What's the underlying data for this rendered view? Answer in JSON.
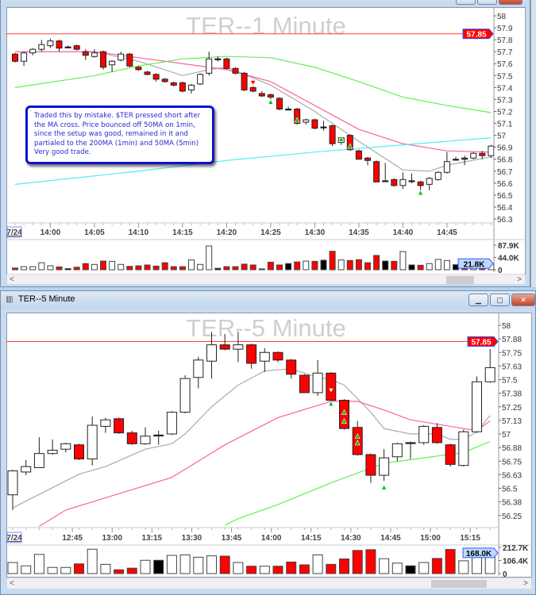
{
  "colors": {
    "up": "#ffffff",
    "down": "#ff0000",
    "doji": "#000000",
    "ref_line": "#ff4040",
    "ma_gray": "#aaaaaa",
    "ma_pink": "#ff5fa8",
    "ma_green": "#66ee55",
    "ma_cyan": "#55eeee",
    "tag_red": "#ff0000",
    "tag_border": "#3355ff",
    "marker_green": "#00c000"
  },
  "top_window": {
    "title": "TER--1 Minute",
    "note": "Traded this by mistake. $TER pressed short after the MA cross. Price bounced off 50MA on 1min, since the setup was good, remained in it and partialed to the 200MA (1min) and 50MA (5min) Very good trade.",
    "date_label": "7/24",
    "price_tag": "57.85",
    "volume_tag": "21.8K",
    "volume_labels": [
      "87.9K",
      "44.0K",
      "0"
    ],
    "price_ticks": [
      "58",
      "57.9",
      "57.8",
      "57.7",
      "57.6",
      "57.5",
      "57.4",
      "57.3",
      "57.2",
      "57.1",
      "57",
      "56.9",
      "56.8",
      "56.7",
      "56.6",
      "56.5",
      "56.4",
      "56.3"
    ],
    "time_ticks": [
      "14:00",
      "14:05",
      "14:10",
      "14:15",
      "14:20",
      "14:25",
      "14:30",
      "14:35",
      "14:40",
      "14:45"
    ],
    "scroll_left": "<",
    "scroll_right": ">"
  },
  "bottom_window": {
    "title": "TER--5 Minute",
    "watermark": "TER--5 Minute",
    "date_label": "7/24",
    "price_tag": "57.85",
    "volume_tag": "168.0K",
    "volume_labels": [
      "212.7K",
      "106.4K",
      "0"
    ],
    "price_ticks": [
      "58",
      "57.88",
      "57.75",
      "57.63",
      "57.5",
      "57.38",
      "57.25",
      "57.13",
      "57",
      "56.88",
      "56.75",
      "56.63",
      "56.5",
      "56.38",
      "56.25"
    ],
    "time_ticks": [
      "12:45",
      "13:00",
      "13:15",
      "13:30",
      "13:45",
      "14:00",
      "14:15",
      "14:30",
      "14:45",
      "15:00",
      "15:15"
    ],
    "buttons": {
      "minimize": "▁",
      "maximize": "▢",
      "close": "✕"
    },
    "scroll_left": "<",
    "scroll_right": ">"
  },
  "chart_data": [
    {
      "type": "candlestick",
      "title": "TER--1 Minute",
      "start": "13:56",
      "interval_min": 1,
      "ylim": [
        56.3,
        58
      ],
      "reference_price": 57.85,
      "ohlc": [
        [
          57.68,
          57.69,
          57.61,
          57.62
        ],
        [
          57.62,
          57.7,
          57.58,
          57.69
        ],
        [
          57.69,
          57.73,
          57.67,
          57.72
        ],
        [
          57.72,
          57.8,
          57.7,
          57.76
        ],
        [
          57.75,
          57.81,
          57.73,
          57.79
        ],
        [
          57.79,
          57.8,
          57.7,
          57.73
        ],
        [
          57.74,
          57.75,
          57.73,
          57.74
        ],
        [
          57.75,
          57.76,
          57.71,
          57.72
        ],
        [
          57.7,
          57.72,
          57.63,
          57.67
        ],
        [
          57.66,
          57.72,
          57.65,
          57.69
        ],
        [
          57.7,
          57.71,
          57.55,
          57.57
        ],
        [
          57.59,
          57.63,
          57.53,
          57.62
        ],
        [
          57.63,
          57.7,
          57.62,
          57.68
        ],
        [
          57.68,
          57.69,
          57.57,
          57.58
        ],
        [
          57.57,
          57.58,
          57.54,
          57.55
        ],
        [
          57.53,
          57.54,
          57.5,
          57.51
        ],
        [
          57.51,
          57.52,
          57.45,
          57.47
        ],
        [
          57.47,
          57.48,
          57.44,
          57.45
        ],
        [
          57.44,
          57.45,
          57.41,
          57.42
        ],
        [
          57.44,
          57.45,
          57.36,
          57.37
        ],
        [
          57.38,
          57.43,
          57.35,
          57.42
        ],
        [
          57.43,
          57.52,
          57.42,
          57.51
        ],
        [
          57.52,
          57.7,
          57.5,
          57.64
        ],
        [
          57.64,
          57.66,
          57.62,
          57.64
        ],
        [
          57.64,
          57.65,
          57.55,
          57.56
        ],
        [
          57.56,
          57.57,
          57.51,
          57.52
        ],
        [
          57.52,
          57.53,
          57.37,
          57.38
        ],
        [
          57.4,
          57.41,
          57.36,
          57.37
        ],
        [
          57.35,
          57.37,
          57.32,
          57.33
        ],
        [
          57.34,
          57.35,
          57.3,
          57.32
        ],
        [
          57.31,
          57.32,
          57.21,
          57.22
        ],
        [
          57.22,
          57.24,
          57.21,
          57.22
        ],
        [
          57.22,
          57.23,
          57.09,
          57.1
        ],
        [
          57.11,
          57.14,
          57.09,
          57.13
        ],
        [
          57.13,
          57.14,
          57.05,
          57.06
        ],
        [
          57.07,
          57.12,
          57.04,
          57.07
        ],
        [
          57.08,
          57.09,
          56.91,
          56.93
        ],
        [
          56.94,
          56.99,
          56.92,
          56.98
        ],
        [
          57.0,
          57.01,
          56.87,
          56.88
        ],
        [
          56.87,
          56.88,
          56.8,
          56.8
        ],
        [
          56.81,
          56.82,
          56.75,
          56.79
        ],
        [
          56.78,
          56.79,
          56.61,
          56.61
        ],
        [
          56.62,
          56.77,
          56.61,
          56.62
        ],
        [
          56.63,
          56.64,
          56.57,
          56.58
        ],
        [
          56.58,
          56.69,
          56.55,
          56.63
        ],
        [
          56.62,
          56.68,
          56.6,
          56.62
        ],
        [
          56.61,
          56.62,
          56.54,
          56.58
        ],
        [
          56.59,
          56.65,
          56.54,
          56.64
        ],
        [
          56.63,
          56.7,
          56.62,
          56.69
        ],
        [
          56.69,
          56.86,
          56.68,
          56.78
        ],
        [
          56.8,
          56.82,
          56.79,
          56.8
        ],
        [
          56.81,
          56.83,
          56.75,
          56.8
        ],
        [
          56.81,
          56.86,
          56.8,
          56.85
        ],
        [
          56.85,
          56.87,
          56.8,
          56.83
        ],
        [
          56.83,
          56.92,
          56.81,
          56.91
        ]
      ],
      "volume_k": [
        6,
        11,
        11,
        25,
        14,
        10,
        4,
        9,
        22,
        19,
        31,
        30,
        19,
        12,
        14,
        17,
        13,
        25,
        11,
        11,
        35,
        19,
        85,
        5,
        11,
        11,
        20,
        17,
        3,
        27,
        17,
        22,
        28,
        31,
        30,
        34,
        66,
        35,
        33,
        36,
        25,
        51,
        31,
        30,
        65,
        17,
        16,
        22,
        37,
        33,
        18,
        18,
        22,
        20,
        21.8
      ],
      "volume_max_k": 87.9,
      "moving_averages": [
        {
          "color": "#aaaaaa",
          "points": [
            [
              0,
              57.7
            ],
            [
              9,
              57.7
            ],
            [
              14,
              57.62
            ],
            [
              19,
              57.5
            ],
            [
              22,
              57.55
            ],
            [
              24,
              57.57
            ],
            [
              29,
              57.42
            ],
            [
              34,
              57.2
            ],
            [
              39,
              56.95
            ],
            [
              44,
              56.71
            ],
            [
              47,
              56.7
            ],
            [
              49,
              56.75
            ],
            [
              54,
              56.82
            ]
          ]
        },
        {
          "color": "#ff5fa8",
          "points": [
            [
              0,
              57.7
            ],
            [
              9,
              57.7
            ],
            [
              14,
              57.65
            ],
            [
              19,
              57.6
            ],
            [
              24,
              57.55
            ],
            [
              29,
              57.45
            ],
            [
              34,
              57.25
            ],
            [
              39,
              57.05
            ],
            [
              44,
              56.93
            ],
            [
              49,
              56.87
            ],
            [
              54,
              56.86
            ]
          ]
        },
        {
          "color": "#66ee55",
          "points": [
            [
              0,
              57.4
            ],
            [
              9,
              57.5
            ],
            [
              14,
              57.58
            ],
            [
              19,
              57.64
            ],
            [
              24,
              57.66
            ],
            [
              29,
              57.65
            ],
            [
              34,
              57.57
            ],
            [
              39,
              57.45
            ],
            [
              44,
              57.32
            ],
            [
              49,
              57.25
            ],
            [
              54,
              57.19
            ]
          ]
        },
        {
          "color": "#55eeee",
          "points": [
            [
              0,
              56.59
            ],
            [
              14,
              56.7
            ],
            [
              24,
              56.79
            ],
            [
              34,
              56.86
            ],
            [
              44,
              56.92
            ],
            [
              54,
              56.98
            ]
          ]
        }
      ],
      "markers": [
        {
          "bar": 27,
          "price": 57.44,
          "type": "down-red"
        },
        {
          "bar": 29,
          "price": 57.28,
          "type": "up-green"
        },
        {
          "bar": 32,
          "price": 57.13,
          "type": "up-green"
        },
        {
          "bar": 37,
          "price": 56.97,
          "type": "up-green"
        },
        {
          "bar": 38,
          "price": 56.91,
          "type": "up-green"
        },
        {
          "bar": 46,
          "price": 56.52,
          "type": "up-green"
        }
      ]
    },
    {
      "type": "candlestick",
      "title": "TER--5 Minute",
      "start": "12:25",
      "interval_min": 5,
      "ylim": [
        56.2,
        58.05
      ],
      "reference_price": 57.85,
      "ohlc": [
        [
          56.44,
          56.67,
          56.3,
          56.66
        ],
        [
          56.65,
          56.76,
          56.62,
          56.7
        ],
        [
          56.69,
          56.97,
          56.69,
          56.82
        ],
        [
          56.82,
          56.95,
          56.81,
          56.85
        ],
        [
          56.86,
          56.92,
          56.83,
          56.91
        ],
        [
          56.9,
          56.91,
          56.76,
          56.77
        ],
        [
          56.77,
          57.16,
          56.71,
          57.08
        ],
        [
          57.07,
          57.15,
          57.01,
          57.13
        ],
        [
          57.14,
          57.15,
          57.0,
          57.01
        ],
        [
          57.01,
          57.03,
          56.9,
          56.91
        ],
        [
          56.91,
          57.06,
          56.9,
          56.98
        ],
        [
          56.99,
          57.03,
          56.9,
          56.99
        ],
        [
          57.0,
          57.21,
          56.99,
          57.2
        ],
        [
          57.2,
          57.54,
          57.19,
          57.51
        ],
        [
          57.52,
          57.71,
          57.42,
          57.68
        ],
        [
          57.67,
          57.94,
          57.51,
          57.82
        ],
        [
          57.82,
          57.92,
          57.77,
          57.78
        ],
        [
          57.78,
          57.94,
          57.66,
          57.82
        ],
        [
          57.82,
          57.83,
          57.6,
          57.65
        ],
        [
          57.67,
          57.79,
          57.57,
          57.75
        ],
        [
          57.75,
          57.76,
          57.66,
          57.68
        ],
        [
          57.68,
          57.69,
          57.51,
          57.55
        ],
        [
          57.54,
          57.55,
          57.38,
          57.38
        ],
        [
          57.38,
          57.68,
          57.35,
          57.56
        ],
        [
          57.56,
          57.57,
          57.29,
          57.31
        ],
        [
          57.31,
          57.32,
          57.04,
          57.05
        ],
        [
          57.06,
          57.12,
          56.8,
          56.81
        ],
        [
          56.81,
          56.82,
          56.55,
          56.62
        ],
        [
          56.62,
          56.86,
          56.57,
          56.78
        ],
        [
          56.79,
          56.92,
          56.75,
          56.91
        ],
        [
          56.92,
          56.93,
          56.77,
          56.92
        ],
        [
          56.92,
          57.08,
          56.9,
          57.07
        ],
        [
          57.06,
          57.1,
          56.91,
          56.92
        ],
        [
          56.9,
          56.91,
          56.7,
          56.72
        ],
        [
          56.71,
          57.04,
          56.7,
          57.02
        ],
        [
          57.02,
          57.53,
          57.01,
          57.48
        ],
        [
          57.48,
          57.78,
          57.47,
          57.61
        ]
      ],
      "volume_k": [
        90,
        63,
        156,
        50,
        50,
        79,
        198,
        75,
        31,
        44,
        108,
        108,
        148,
        152,
        133,
        144,
        142,
        90,
        60,
        60,
        60,
        94,
        71,
        152,
        75,
        119,
        188,
        194,
        121,
        85,
        63,
        90,
        123,
        196,
        104,
        163,
        168
      ],
      "volume_max_k": 212.7,
      "moving_averages": [
        {
          "color": "#aaaaaa",
          "points": [
            [
              0,
              56.32
            ],
            [
              5,
              56.63
            ],
            [
              7,
              56.7
            ],
            [
              10,
              56.86
            ],
            [
              12,
              56.91
            ],
            [
              13,
              57.0
            ],
            [
              15,
              57.25
            ],
            [
              17,
              57.45
            ],
            [
              19,
              57.58
            ],
            [
              21,
              57.6
            ],
            [
              23,
              57.52
            ],
            [
              24,
              57.5
            ],
            [
              25,
              57.45
            ],
            [
              27,
              57.2
            ],
            [
              28,
              57.05
            ],
            [
              30,
              57.0
            ],
            [
              32,
              57.0
            ],
            [
              33,
              56.95
            ],
            [
              34,
              56.95
            ],
            [
              35,
              57.02
            ],
            [
              36,
              57.17
            ]
          ]
        },
        {
          "color": "#ff5fa8",
          "points": [
            [
              2,
              56.15
            ],
            [
              4,
              56.3
            ],
            [
              8,
              56.45
            ],
            [
              12,
              56.6
            ],
            [
              16,
              56.9
            ],
            [
              20,
              57.15
            ],
            [
              24,
              57.3
            ],
            [
              26,
              57.3
            ],
            [
              28,
              57.22
            ],
            [
              30,
              57.13
            ],
            [
              33,
              57.07
            ],
            [
              35,
              57.03
            ],
            [
              36,
              57.12
            ]
          ]
        },
        {
          "color": "#66ee55",
          "points": [
            [
              16,
              56.16
            ],
            [
              17,
              56.22
            ],
            [
              20,
              56.35
            ],
            [
              24,
              56.55
            ],
            [
              28,
              56.73
            ],
            [
              31,
              56.78
            ],
            [
              34,
              56.83
            ],
            [
              36,
              56.93
            ]
          ]
        }
      ],
      "markers": [
        {
          "bar": 24,
          "price": 57.4,
          "type": "down-white"
        },
        {
          "bar": 24,
          "price": 57.28,
          "type": "up-green"
        },
        {
          "bar": 25,
          "price": 57.2,
          "type": "up-green"
        },
        {
          "bar": 25,
          "price": 57.12,
          "type": "up-green"
        },
        {
          "bar": 26,
          "price": 56.98,
          "type": "up-green"
        },
        {
          "bar": 26,
          "price": 56.92,
          "type": "up-green"
        },
        {
          "bar": 28,
          "price": 56.51,
          "type": "up-green"
        }
      ]
    }
  ]
}
